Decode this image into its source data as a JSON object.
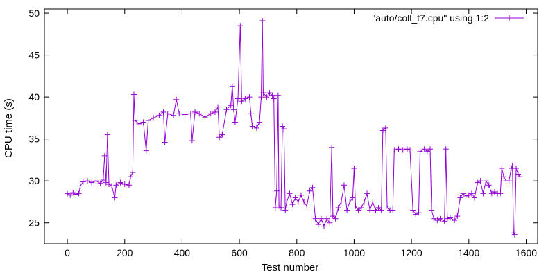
{
  "chart_data": {
    "type": "line",
    "title": "",
    "xlabel": "Test number",
    "ylabel": "CPU time (s)",
    "xlim": [
      -80,
      1640
    ],
    "ylim": [
      22.5,
      50.5
    ],
    "xticks": [
      0,
      200,
      400,
      600,
      800,
      1000,
      1200,
      1400,
      1600
    ],
    "yticks": [
      25,
      30,
      35,
      40,
      45,
      50
    ],
    "grid": false,
    "legend_position": "top-right",
    "series": [
      {
        "name": "\"auto/coll_t7.cpu\" using 1:2",
        "color": "#9400d3",
        "marker": "plus",
        "points": [
          [
            0,
            28.5
          ],
          [
            10,
            28.3
          ],
          [
            20,
            28.6
          ],
          [
            30,
            28.4
          ],
          [
            40,
            28.5
          ],
          [
            45,
            29.4
          ],
          [
            55,
            29.9
          ],
          [
            70,
            30.0
          ],
          [
            85,
            29.8
          ],
          [
            100,
            30.0
          ],
          [
            115,
            29.7
          ],
          [
            125,
            30.1
          ],
          [
            130,
            33.0
          ],
          [
            135,
            29.8
          ],
          [
            140,
            35.5
          ],
          [
            145,
            29.6
          ],
          [
            155,
            29.4
          ],
          [
            165,
            28.0
          ],
          [
            170,
            29.5
          ],
          [
            185,
            29.8
          ],
          [
            200,
            29.6
          ],
          [
            215,
            29.5
          ],
          [
            220,
            30.5
          ],
          [
            228,
            31.0
          ],
          [
            232,
            40.3
          ],
          [
            236,
            37.2
          ],
          [
            250,
            36.8
          ],
          [
            265,
            37.0
          ],
          [
            275,
            33.6
          ],
          [
            282,
            37.2
          ],
          [
            300,
            37.5
          ],
          [
            320,
            37.8
          ],
          [
            335,
            38.2
          ],
          [
            340,
            34.6
          ],
          [
            350,
            38.0
          ],
          [
            370,
            37.8
          ],
          [
            380,
            39.7
          ],
          [
            390,
            38.0
          ],
          [
            410,
            37.9
          ],
          [
            430,
            38.0
          ],
          [
            435,
            34.8
          ],
          [
            445,
            38.2
          ],
          [
            460,
            38.0
          ],
          [
            480,
            37.6
          ],
          [
            500,
            38.0
          ],
          [
            515,
            38.2
          ],
          [
            525,
            38.8
          ],
          [
            530,
            35.2
          ],
          [
            540,
            35.5
          ],
          [
            555,
            38.5
          ],
          [
            570,
            39.0
          ],
          [
            575,
            41.3
          ],
          [
            580,
            38.5
          ],
          [
            585,
            37.0
          ],
          [
            595,
            39.8
          ],
          [
            603,
            48.5
          ],
          [
            608,
            39.5
          ],
          [
            620,
            39.8
          ],
          [
            635,
            40.0
          ],
          [
            640,
            38.0
          ],
          [
            645,
            36.5
          ],
          [
            660,
            36.3
          ],
          [
            670,
            37.0
          ],
          [
            676,
            40.0
          ],
          [
            680,
            49.1
          ],
          [
            683,
            40.5
          ],
          [
            695,
            40.0
          ],
          [
            705,
            40.5
          ],
          [
            715,
            40.2
          ],
          [
            720,
            39.8
          ],
          [
            725,
            26.8
          ],
          [
            730,
            28.8
          ],
          [
            735,
            40.2
          ],
          [
            738,
            27.0
          ],
          [
            745,
            26.8
          ],
          [
            750,
            36.5
          ],
          [
            755,
            36.2
          ],
          [
            760,
            26.5
          ],
          [
            765,
            27.5
          ],
          [
            775,
            28.5
          ],
          [
            785,
            27.2
          ],
          [
            795,
            28.0
          ],
          [
            805,
            27.5
          ],
          [
            815,
            28.3
          ],
          [
            825,
            27.5
          ],
          [
            835,
            27.0
          ],
          [
            845,
            28.8
          ],
          [
            855,
            29.2
          ],
          [
            865,
            25.5
          ],
          [
            875,
            24.8
          ],
          [
            885,
            25.5
          ],
          [
            895,
            24.6
          ],
          [
            905,
            25.5
          ],
          [
            915,
            25.0
          ],
          [
            922,
            34.0
          ],
          [
            926,
            25.8
          ],
          [
            935,
            25.5
          ],
          [
            945,
            26.8
          ],
          [
            955,
            27.5
          ],
          [
            965,
            29.5
          ],
          [
            975,
            26.5
          ],
          [
            985,
            27.5
          ],
          [
            995,
            28.0
          ],
          [
            1000,
            31.5
          ],
          [
            1005,
            27.0
          ],
          [
            1015,
            26.5
          ],
          [
            1025,
            26.8
          ],
          [
            1035,
            27.5
          ],
          [
            1045,
            28.5
          ],
          [
            1055,
            26.5
          ],
          [
            1065,
            27.5
          ],
          [
            1075,
            26.5
          ],
          [
            1085,
            26.8
          ],
          [
            1095,
            26.5
          ],
          [
            1100,
            36.0
          ],
          [
            1110,
            36.3
          ],
          [
            1115,
            27.0
          ],
          [
            1125,
            26.5
          ],
          [
            1135,
            26.5
          ],
          [
            1140,
            33.7
          ],
          [
            1155,
            33.8
          ],
          [
            1170,
            33.7
          ],
          [
            1185,
            33.8
          ],
          [
            1195,
            33.7
          ],
          [
            1205,
            26.5
          ],
          [
            1215,
            26.0
          ],
          [
            1225,
            26.2
          ],
          [
            1230,
            33.5
          ],
          [
            1245,
            33.8
          ],
          [
            1255,
            33.5
          ],
          [
            1265,
            33.8
          ],
          [
            1270,
            26.5
          ],
          [
            1278,
            25.5
          ],
          [
            1290,
            25.3
          ],
          [
            1300,
            25.5
          ],
          [
            1315,
            25.2
          ],
          [
            1320,
            33.8
          ],
          [
            1325,
            25.5
          ],
          [
            1335,
            25.6
          ],
          [
            1350,
            25.3
          ],
          [
            1360,
            25.8
          ],
          [
            1370,
            28.0
          ],
          [
            1380,
            28.5
          ],
          [
            1390,
            28.2
          ],
          [
            1400,
            28.3
          ],
          [
            1410,
            28.5
          ],
          [
            1420,
            28.0
          ],
          [
            1430,
            29.8
          ],
          [
            1440,
            30.0
          ],
          [
            1450,
            28.5
          ],
          [
            1460,
            30.0
          ],
          [
            1470,
            29.5
          ],
          [
            1480,
            28.5
          ],
          [
            1490,
            28.7
          ],
          [
            1500,
            28.5
          ],
          [
            1510,
            28.5
          ],
          [
            1515,
            31.5
          ],
          [
            1522,
            30.5
          ],
          [
            1530,
            30.0
          ],
          [
            1540,
            30.0
          ],
          [
            1548,
            31.5
          ],
          [
            1552,
            31.8
          ],
          [
            1556,
            23.8
          ],
          [
            1560,
            23.6
          ],
          [
            1565,
            31.5
          ],
          [
            1572,
            30.8
          ],
          [
            1578,
            30.5
          ]
        ]
      }
    ]
  }
}
